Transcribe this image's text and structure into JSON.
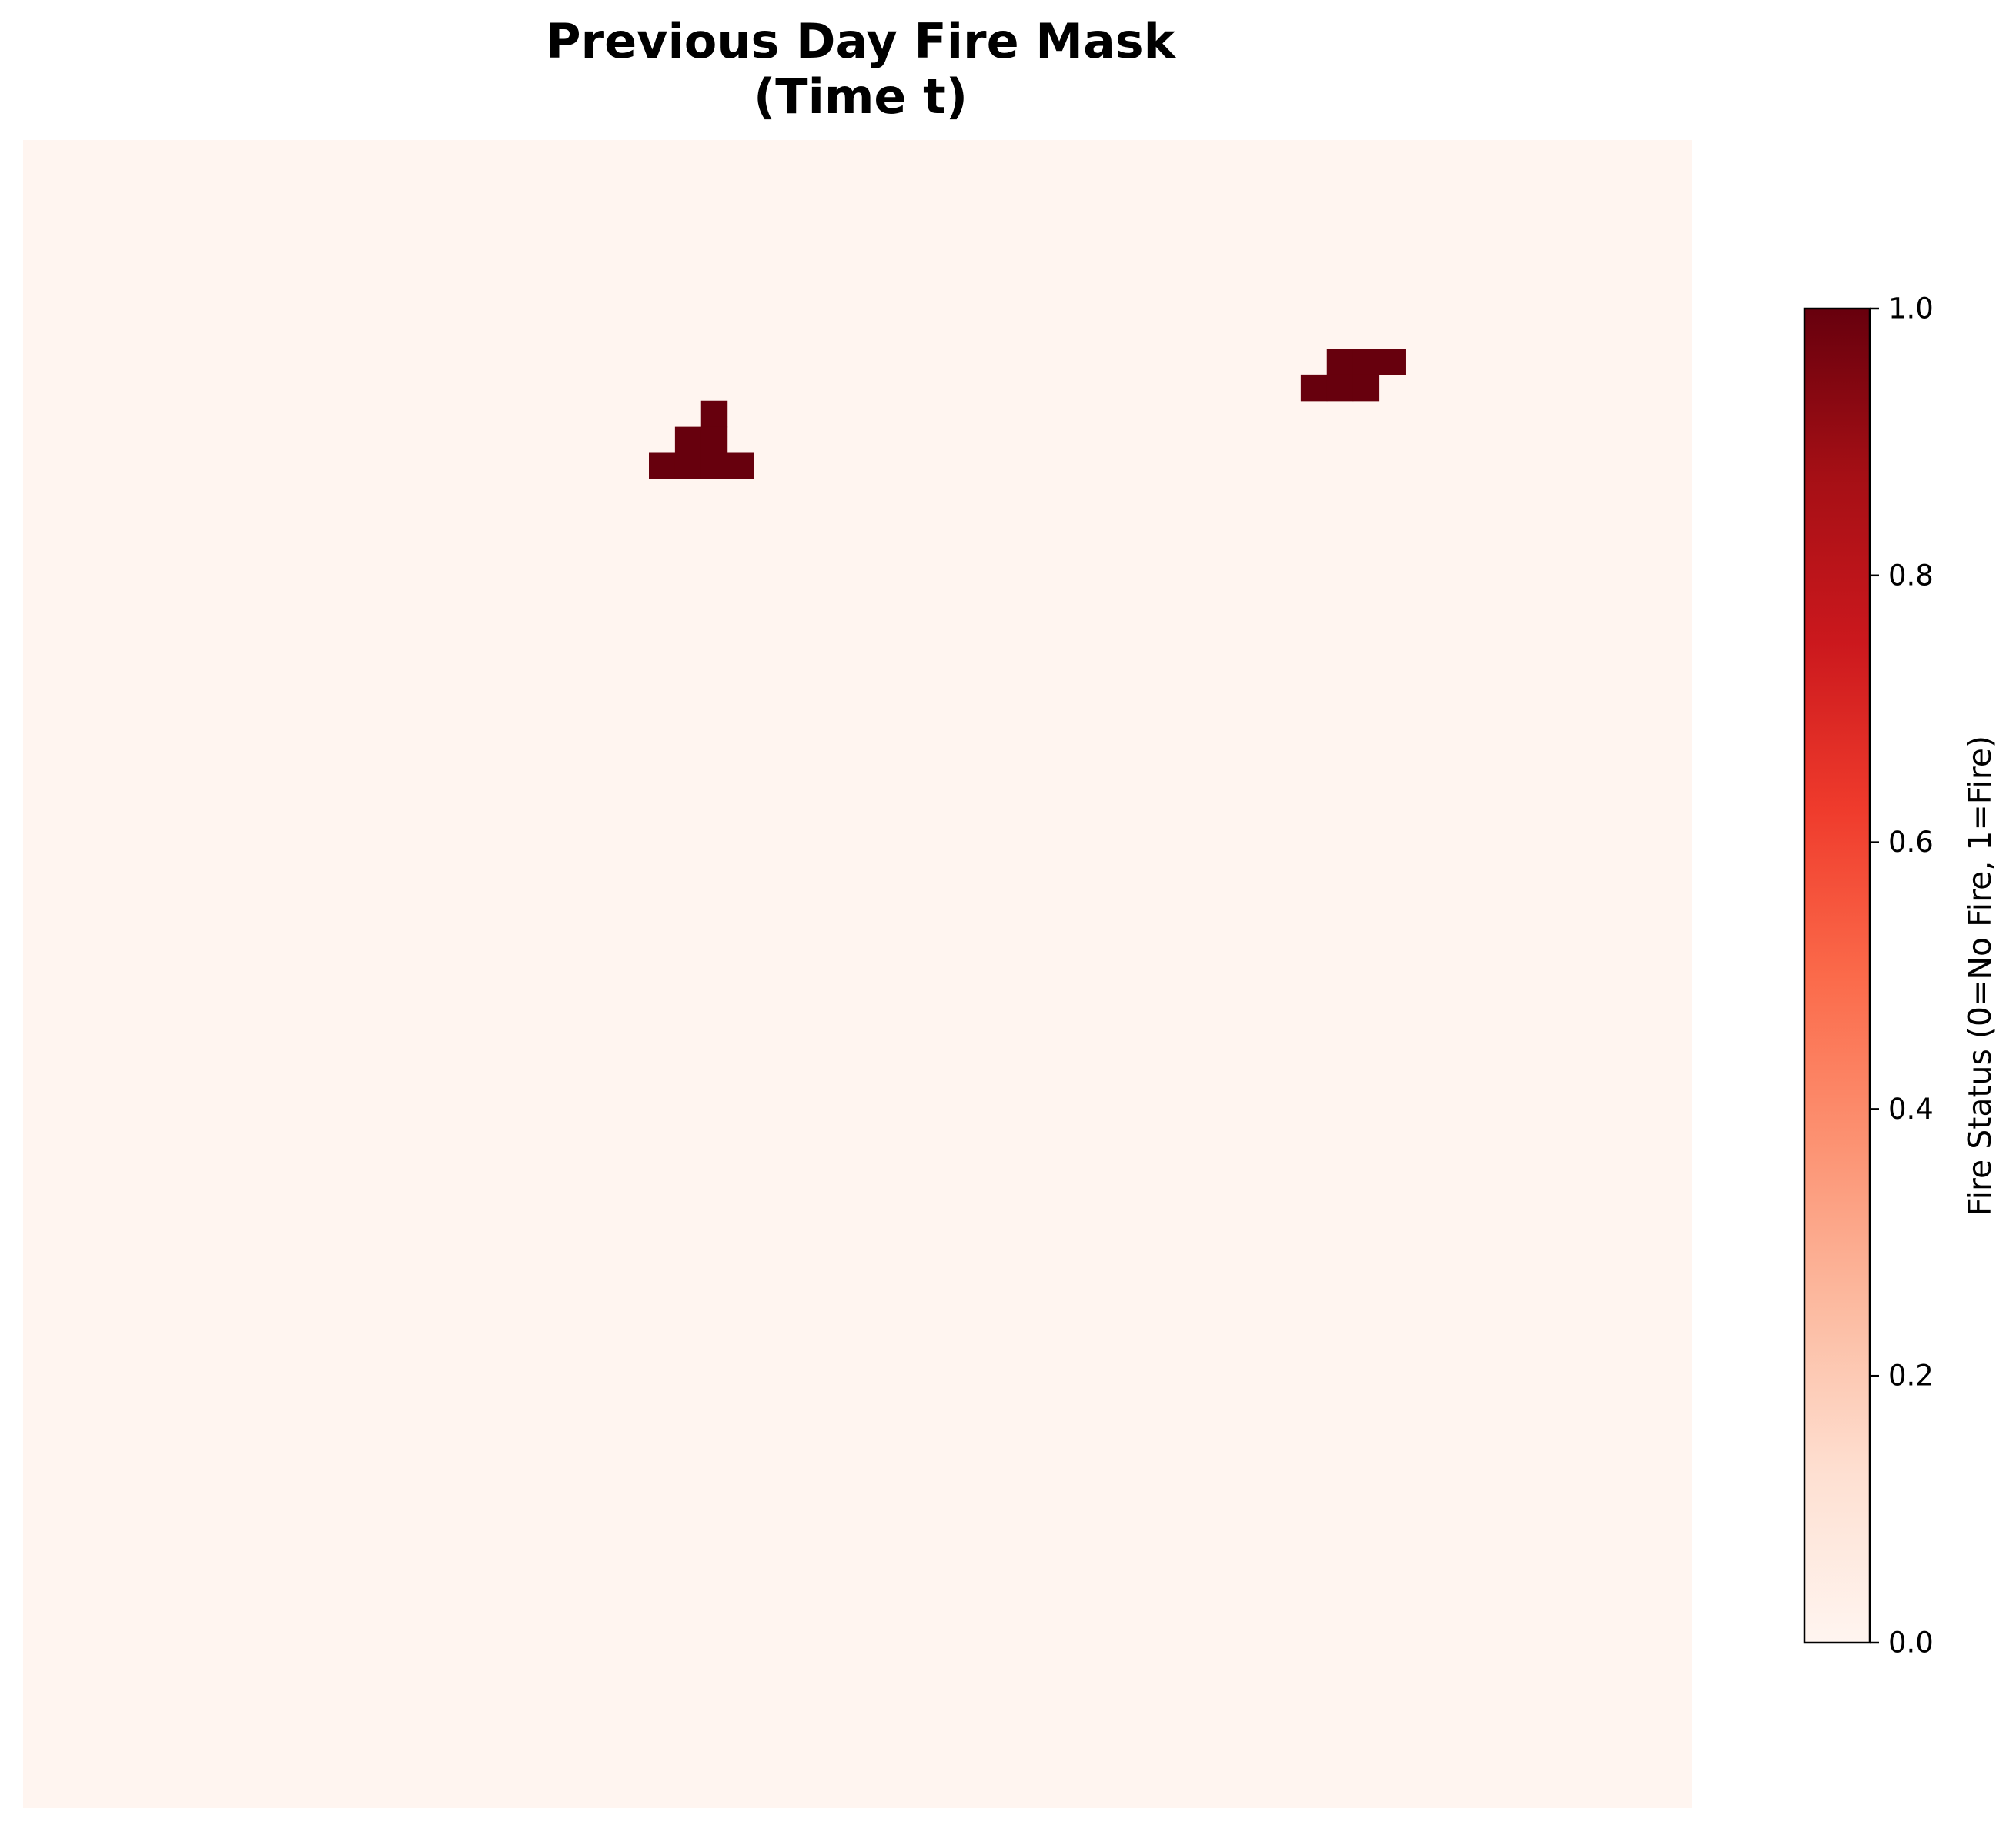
{
  "chart_data": {
    "type": "heatmap",
    "title": "Previous Day Fire Mask\n(Time t)",
    "title_lines": [
      "Previous Day Fire Mask",
      "(Time t)"
    ],
    "grid_size": 64,
    "background_value": 0,
    "fire_cells": [
      {
        "row": 8,
        "col": 50
      },
      {
        "row": 8,
        "col": 51
      },
      {
        "row": 8,
        "col": 52
      },
      {
        "row": 9,
        "col": 49
      },
      {
        "row": 9,
        "col": 50
      },
      {
        "row": 9,
        "col": 51
      },
      {
        "row": 10,
        "col": 26
      },
      {
        "row": 11,
        "col": 25
      },
      {
        "row": 11,
        "col": 26
      },
      {
        "row": 12,
        "col": 24
      },
      {
        "row": 12,
        "col": 25
      },
      {
        "row": 12,
        "col": 26
      },
      {
        "row": 12,
        "col": 27
      }
    ],
    "axes_visible": false,
    "colormap": "Reds",
    "colormap_stops": [
      "#fff5f0",
      "#fee0d2",
      "#fcbba1",
      "#fc9272",
      "#fb6a4a",
      "#ef3b2c",
      "#cb181d",
      "#a50f15",
      "#67000d"
    ],
    "colorbar": {
      "label": "Fire Status (0=No Fire, 1=Fire)",
      "range": [
        0,
        1
      ],
      "ticks": [
        "0.0",
        "0.2",
        "0.4",
        "0.6",
        "0.8",
        "1.0"
      ]
    }
  }
}
